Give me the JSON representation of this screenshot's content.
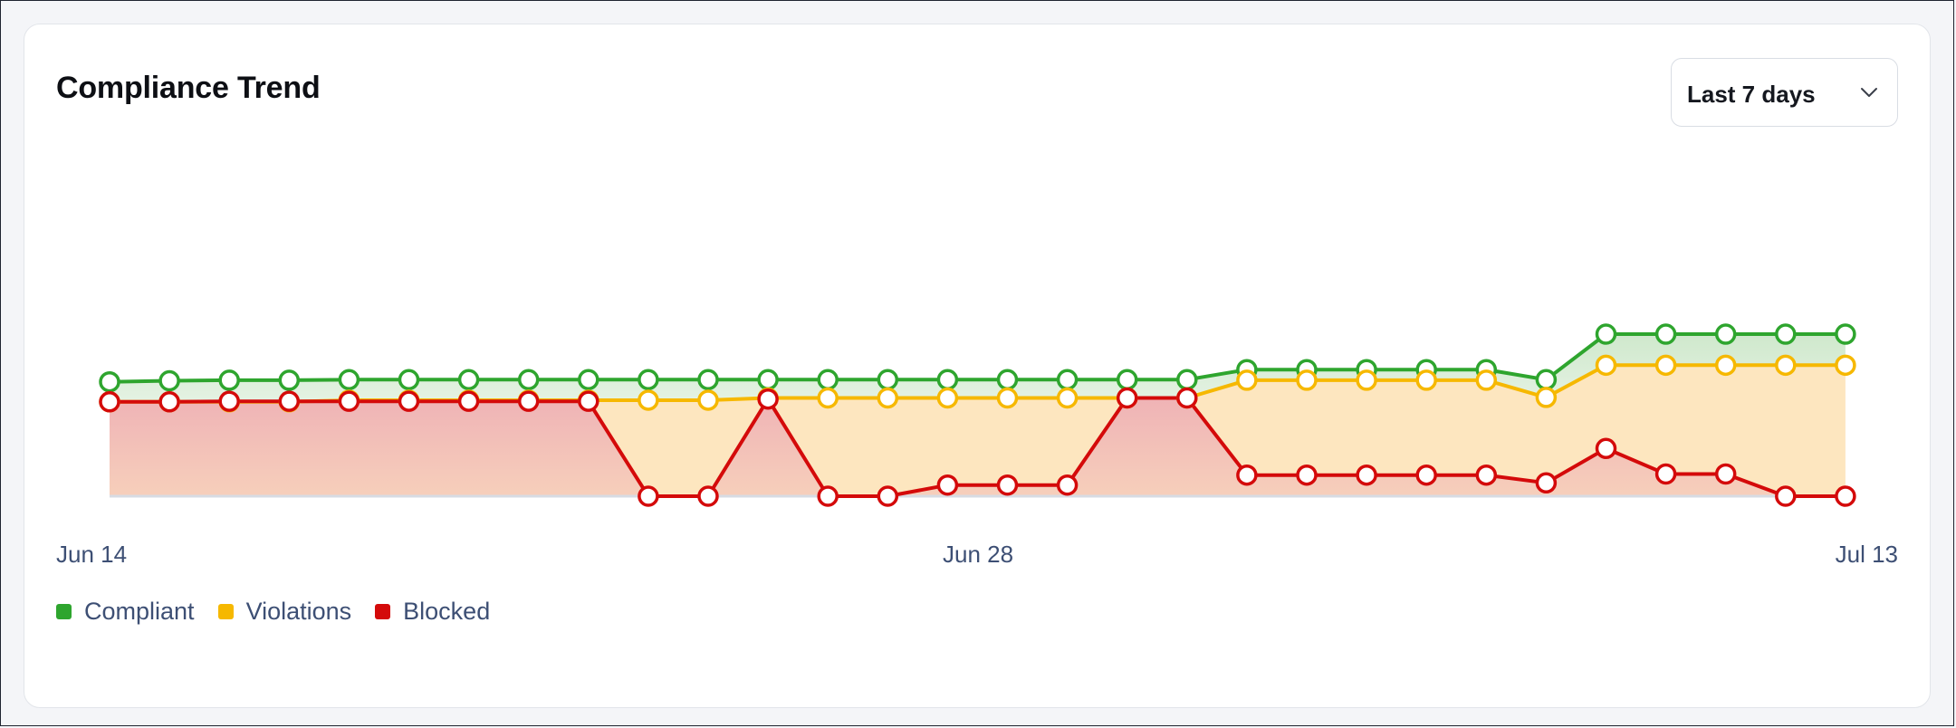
{
  "title": "Compliance Trend",
  "range_select": {
    "label": "Last 7 days",
    "icon": "chevron-down-icon"
  },
  "colors": {
    "compliant": "#2ea52e",
    "violations": "#f6b800",
    "blocked": "#d40a0a",
    "compliant_fill": "#cfe8cc",
    "violations_fill": "#fde6bf",
    "blocked_fill": "#efb3b6"
  },
  "chart_data": {
    "type": "area",
    "title": "Compliance Trend",
    "x_tick_labels": [
      "Jun 14",
      "Jun 28",
      "Jul 13"
    ],
    "grid": false,
    "legend_position": "bottom-left",
    "y_axis_visible": false,
    "series": [
      {
        "name": "Compliant",
        "values": [
          20.6,
          20.8,
          20.9,
          20.9,
          21.0,
          21.0,
          21.0,
          21.0,
          21.0,
          21.0,
          21.0,
          21.0,
          21.0,
          21.0,
          21.0,
          21.0,
          21.0,
          21.0,
          21.0,
          22.8,
          22.8,
          22.8,
          22.8,
          22.8,
          21.0,
          29.2,
          29.2,
          29.2,
          29.2,
          29.2
        ]
      },
      {
        "name": "Violations",
        "values": [
          17.0,
          17.0,
          17.0,
          17.0,
          17.3,
          17.3,
          17.3,
          17.3,
          17.3,
          17.3,
          17.3,
          17.7,
          17.7,
          17.7,
          17.7,
          17.7,
          17.7,
          17.7,
          17.7,
          20.9,
          20.9,
          20.9,
          20.9,
          20.9,
          17.8,
          23.6,
          23.6,
          23.6,
          23.6,
          23.6
        ]
      },
      {
        "name": "Blocked",
        "values": [
          17.0,
          17.0,
          17.1,
          17.1,
          17.1,
          17.1,
          17.1,
          17.1,
          17.1,
          0.0,
          0.0,
          17.5,
          0.0,
          0.0,
          2.0,
          2.0,
          2.0,
          17.7,
          17.7,
          3.8,
          3.8,
          3.8,
          3.8,
          3.8,
          2.4,
          8.6,
          4.0,
          4.0,
          0.0,
          0.0
        ]
      }
    ]
  }
}
